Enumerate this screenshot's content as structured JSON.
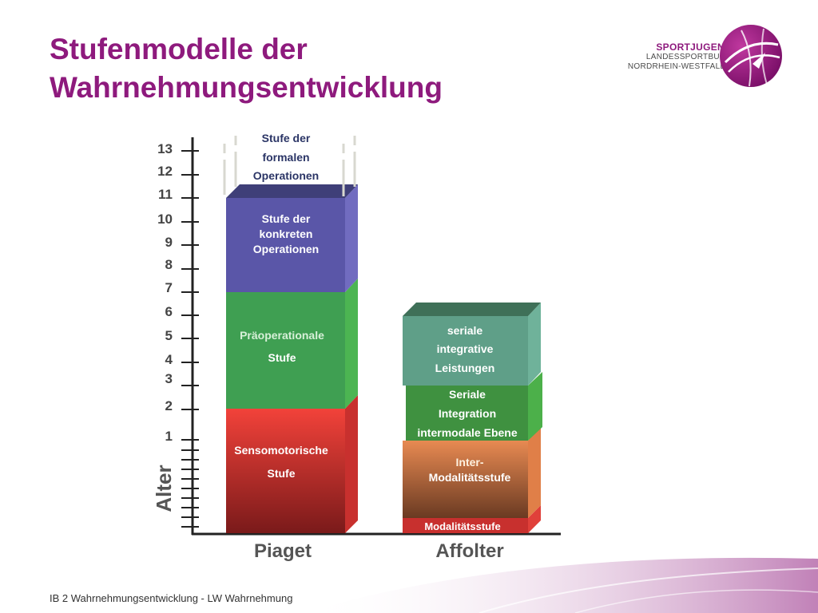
{
  "slide": {
    "title_line1": "Stufenmodelle der",
    "title_line2": "Wahrnehmungsentwicklung",
    "footer": "IB 2 Wahrnehmungsentwicklung - LW Wahrnehmung"
  },
  "logo": {
    "brand": "SPORTJUGEND",
    "line2": "LANDESSPORTBUND",
    "line3": "NORDRHEIN-WESTFALEN"
  },
  "axis": {
    "label": "Alter",
    "ticks": [
      "13",
      "12",
      "11",
      "10",
      "9",
      "8",
      "7",
      "6",
      "5",
      "4",
      "3",
      "2",
      "1"
    ]
  },
  "columns": {
    "piaget": {
      "name": "Piaget",
      "stage1": [
        "Sensomotorische",
        "Stufe"
      ],
      "stage2": [
        "Präoperationale",
        "Stufe"
      ],
      "stage3": [
        "Stufe der",
        "konkreten",
        "Operationen"
      ],
      "stage4": [
        "Stufe der",
        "formalen",
        "Operationen"
      ]
    },
    "affolter": {
      "name": "Affolter",
      "stage1": "Modalitätsstufe",
      "stage2": [
        "Inter-",
        "Modalitätsstufe"
      ],
      "stage3": [
        "Seriale",
        "Integration",
        "intermodale Ebene"
      ],
      "stage4": [
        "seriale",
        "integrative",
        "Leistungen"
      ]
    }
  },
  "colors": {
    "title": "#8e1a7d",
    "sensomotorisch": "#e8403a",
    "praeoperational": "#3f9f52",
    "konkret": "#5a56a8",
    "formal": "#3f3f78",
    "inter": "#e0834c",
    "seriale_integration": "#3f9140",
    "seriale_integrative": "#5f9f88"
  }
}
